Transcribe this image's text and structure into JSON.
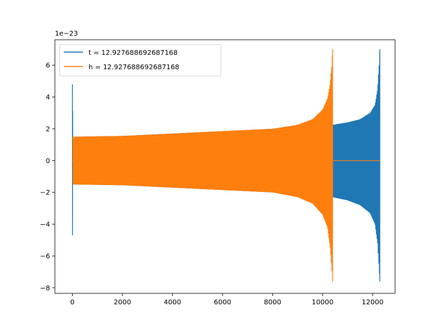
{
  "chart_data": {
    "type": "line",
    "title": "",
    "xlabel": "",
    "ylabel": "",
    "y_offset_label": "1e−23",
    "xlim": [
      -700,
      12900
    ],
    "ylim": [
      -8.35,
      7.6
    ],
    "x_ticks": [
      0,
      2000,
      4000,
      6000,
      8000,
      10000,
      12000
    ],
    "y_ticks": [
      -8,
      -6,
      -4,
      -2,
      0,
      2,
      4,
      6
    ],
    "grid": false,
    "legend_position": "top-left",
    "series": [
      {
        "name": "t = 12.927688692687168",
        "color": "#1f77b4",
        "style": "oscillating chirp",
        "x_start": 0,
        "x_end": 12290,
        "initial_spike_max": 4.8,
        "initial_spike_min": -4.7,
        "envelope_x": [
          20,
          2000,
          4000,
          6000,
          8000,
          10000,
          10400,
          11000,
          11500,
          11900,
          12100,
          12200,
          12260,
          12290
        ],
        "envelope_upper": [
          1.5,
          1.55,
          1.7,
          1.85,
          2.0,
          2.2,
          2.25,
          2.4,
          2.6,
          3.0,
          3.5,
          4.5,
          6.0,
          7.0
        ],
        "envelope_lower": [
          -1.5,
          -1.55,
          -1.7,
          -1.85,
          -2.0,
          -2.2,
          -2.3,
          -2.5,
          -2.8,
          -3.3,
          -4.0,
          -5.2,
          -6.8,
          -7.6
        ]
      },
      {
        "name": "h = 12.927688692687168",
        "color": "#ff7f0e",
        "style": "oscillating chirp, flat after merger",
        "x_start": 0,
        "x_end": 12290,
        "merger_x": 10400,
        "envelope_x": [
          20,
          2000,
          4000,
          6000,
          8000,
          9000,
          9600,
          10000,
          10200,
          10300,
          10370,
          10400
        ],
        "envelope_upper": [
          1.5,
          1.55,
          1.7,
          1.85,
          2.0,
          2.25,
          2.6,
          3.2,
          3.9,
          4.8,
          6.0,
          7.0
        ],
        "envelope_lower": [
          -1.5,
          -1.55,
          -1.7,
          -1.85,
          -2.0,
          -2.3,
          -2.7,
          -3.4,
          -4.2,
          -5.4,
          -6.8,
          -7.6
        ],
        "post_merger_value": 0
      }
    ]
  }
}
